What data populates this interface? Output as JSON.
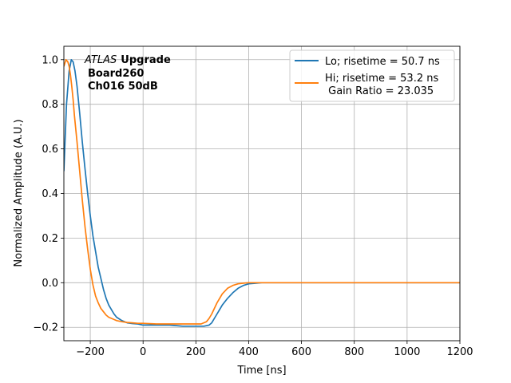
{
  "chart_data": {
    "type": "line",
    "xlabel": "Time [ns]",
    "ylabel": "Normalized Amplitude (A.U.)",
    "xlim": [
      -300,
      1200
    ],
    "ylim": [
      -0.26,
      1.06
    ],
    "xticks": [
      -200,
      0,
      200,
      400,
      600,
      800,
      1000,
      1200
    ],
    "xtick_labels": [
      "−200",
      "0",
      "200",
      "400",
      "600",
      "800",
      "1000",
      "1200"
    ],
    "yticks": [
      -0.2,
      0.0,
      0.2,
      0.4,
      0.6,
      0.8,
      1.0
    ],
    "ytick_labels": [
      "−0.2",
      "0.0",
      "0.2",
      "0.4",
      "0.6",
      "0.8",
      "1.0"
    ],
    "grid": true,
    "legend_placement": "top-right",
    "annotation": {
      "italic": "ATLAS",
      "bold": "Upgrade",
      "line2": "Board260",
      "line3": "Ch016 50dB"
    },
    "series": [
      {
        "name": "Lo; risetime = 50.7 ns",
        "color": "#1f77b4",
        "x": [
          -300,
          -290,
          -280,
          -272,
          -265,
          -258,
          -250,
          -240,
          -230,
          -220,
          -210,
          -200,
          -190,
          -180,
          -170,
          -160,
          -150,
          -140,
          -130,
          -120,
          -110,
          -100,
          -80,
          -60,
          -40,
          -20,
          0,
          50,
          100,
          150,
          200,
          230,
          250,
          260,
          270,
          280,
          290,
          300,
          320,
          340,
          360,
          380,
          400,
          420,
          450,
          500,
          600,
          700,
          800,
          900,
          1000,
          1100,
          1200
        ],
        "y": [
          0.5,
          0.8,
          0.95,
          1.0,
          0.99,
          0.95,
          0.88,
          0.76,
          0.63,
          0.51,
          0.4,
          0.3,
          0.21,
          0.14,
          0.07,
          0.02,
          -0.03,
          -0.07,
          -0.1,
          -0.12,
          -0.14,
          -0.155,
          -0.17,
          -0.18,
          -0.183,
          -0.185,
          -0.19,
          -0.19,
          -0.19,
          -0.195,
          -0.195,
          -0.195,
          -0.19,
          -0.18,
          -0.16,
          -0.14,
          -0.12,
          -0.1,
          -0.07,
          -0.045,
          -0.025,
          -0.012,
          -0.005,
          -0.003,
          0.0,
          0.0,
          0.0,
          0.0,
          0.0,
          0.0,
          0.0,
          0.0,
          0.0
        ]
      },
      {
        "name": "Hi; risetime = 53.2 ns\n Gain Ratio = 23.035",
        "color": "#ff7f0e",
        "x": [
          -300,
          -292,
          -285,
          -280,
          -275,
          -270,
          -265,
          -260,
          -250,
          -240,
          -230,
          -220,
          -210,
          -200,
          -190,
          -180,
          -170,
          -160,
          -150,
          -140,
          -130,
          -120,
          -110,
          -100,
          -80,
          -60,
          -40,
          -20,
          0,
          50,
          100,
          150,
          200,
          220,
          240,
          250,
          260,
          270,
          280,
          290,
          300,
          320,
          340,
          360,
          380,
          400,
          450,
          500,
          600,
          700,
          800,
          900,
          1000,
          1100,
          1200
        ],
        "y": [
          0.97,
          1.0,
          0.99,
          0.97,
          0.93,
          0.88,
          0.82,
          0.75,
          0.63,
          0.5,
          0.37,
          0.25,
          0.15,
          0.06,
          -0.01,
          -0.06,
          -0.09,
          -0.115,
          -0.13,
          -0.145,
          -0.155,
          -0.16,
          -0.165,
          -0.17,
          -0.175,
          -0.178,
          -0.18,
          -0.182,
          -0.182,
          -0.185,
          -0.185,
          -0.185,
          -0.185,
          -0.185,
          -0.175,
          -0.16,
          -0.14,
          -0.115,
          -0.09,
          -0.07,
          -0.05,
          -0.025,
          -0.012,
          -0.005,
          -0.002,
          0.0,
          0.0,
          0.0,
          0.0,
          0.0,
          0.0,
          0.0,
          0.0,
          0.0,
          0.0
        ]
      }
    ]
  }
}
